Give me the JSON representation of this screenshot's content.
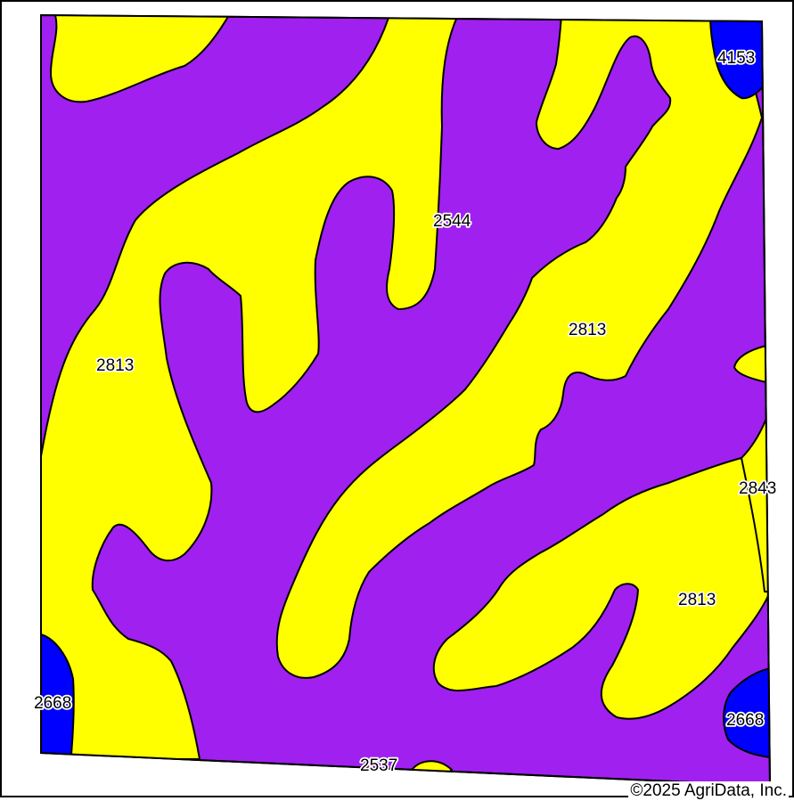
{
  "map": {
    "colors": {
      "purple_unit": "#a020f0",
      "yellow_unit": "#ffff00",
      "blue_unit": "#0000ff",
      "outline": "#000000"
    },
    "labels": {
      "unit_2544": "2544",
      "unit_2813_left": "2813",
      "unit_2813_center": "2813",
      "unit_2813_lower_right": "2813",
      "unit_4153": "4153",
      "unit_2843": "2843",
      "unit_2668_left": "2668",
      "unit_2668_right": "2668",
      "unit_2537": "2537"
    },
    "copyright": "©2025 AgriData, Inc."
  }
}
